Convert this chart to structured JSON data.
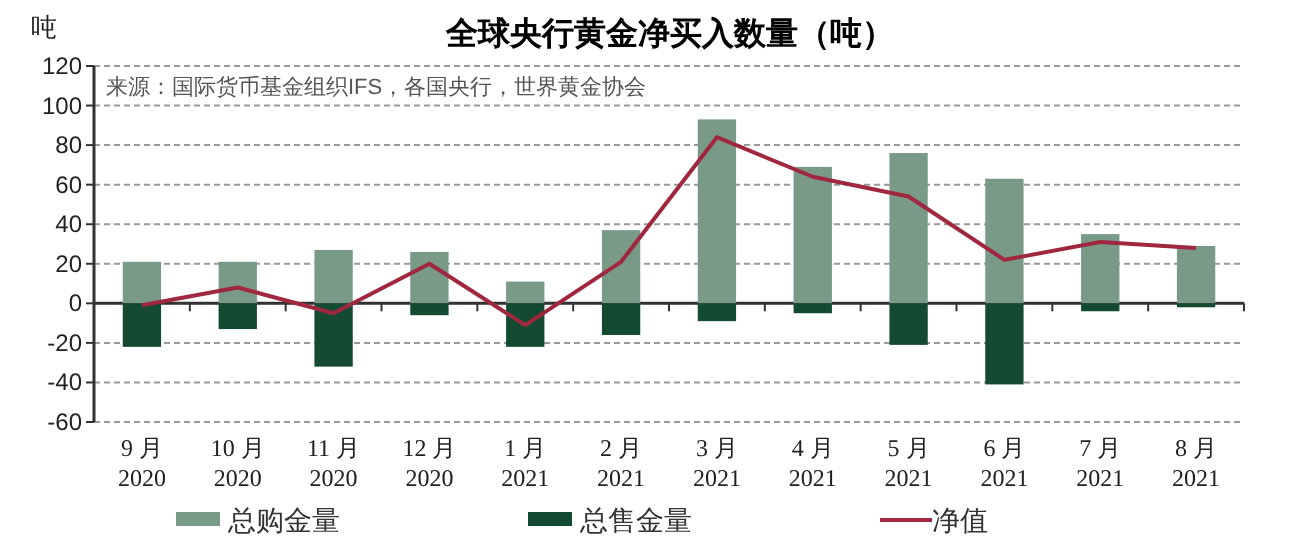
{
  "chart_data": {
    "type": "bar",
    "title": "全球央行黄金净买入数量（吨）",
    "ylabel": "吨",
    "annotations": [
      "来源：国际货币基金组织IFS，各国央行，世界黄金协会"
    ],
    "categories": [
      "9 月 2020",
      "10 月 2020",
      "11 月 2020",
      "12 月 2020",
      "1 月 2021",
      "2 月 2021",
      "3 月 2021",
      "4 月 2021",
      "5 月 2021",
      "6 月 2021",
      "7 月 2021",
      "8 月 2021"
    ],
    "series": [
      {
        "name": "总购金量",
        "color": "#7a9a88",
        "values": [
          21,
          21,
          27,
          26,
          11,
          37,
          93,
          69,
          76,
          63,
          35,
          29
        ]
      },
      {
        "name": "总售金量",
        "color": "#154a32",
        "values": [
          -22,
          -13,
          -32,
          -6,
          -22,
          -16,
          -9,
          -5,
          -21,
          -41,
          -4,
          -2
        ]
      },
      {
        "name": "净值",
        "type": "line",
        "color": "#a0283e",
        "values": [
          -1,
          8,
          -5,
          20,
          -11,
          21,
          84,
          64,
          54,
          22,
          31,
          28
        ]
      }
    ],
    "stacked": true,
    "ylim": [
      -60,
      120
    ],
    "yticks": [
      -60,
      -40,
      -20,
      0,
      20,
      40,
      60,
      80,
      100,
      120
    ],
    "grid": "y",
    "legend": "bottom",
    "marker": "none"
  }
}
